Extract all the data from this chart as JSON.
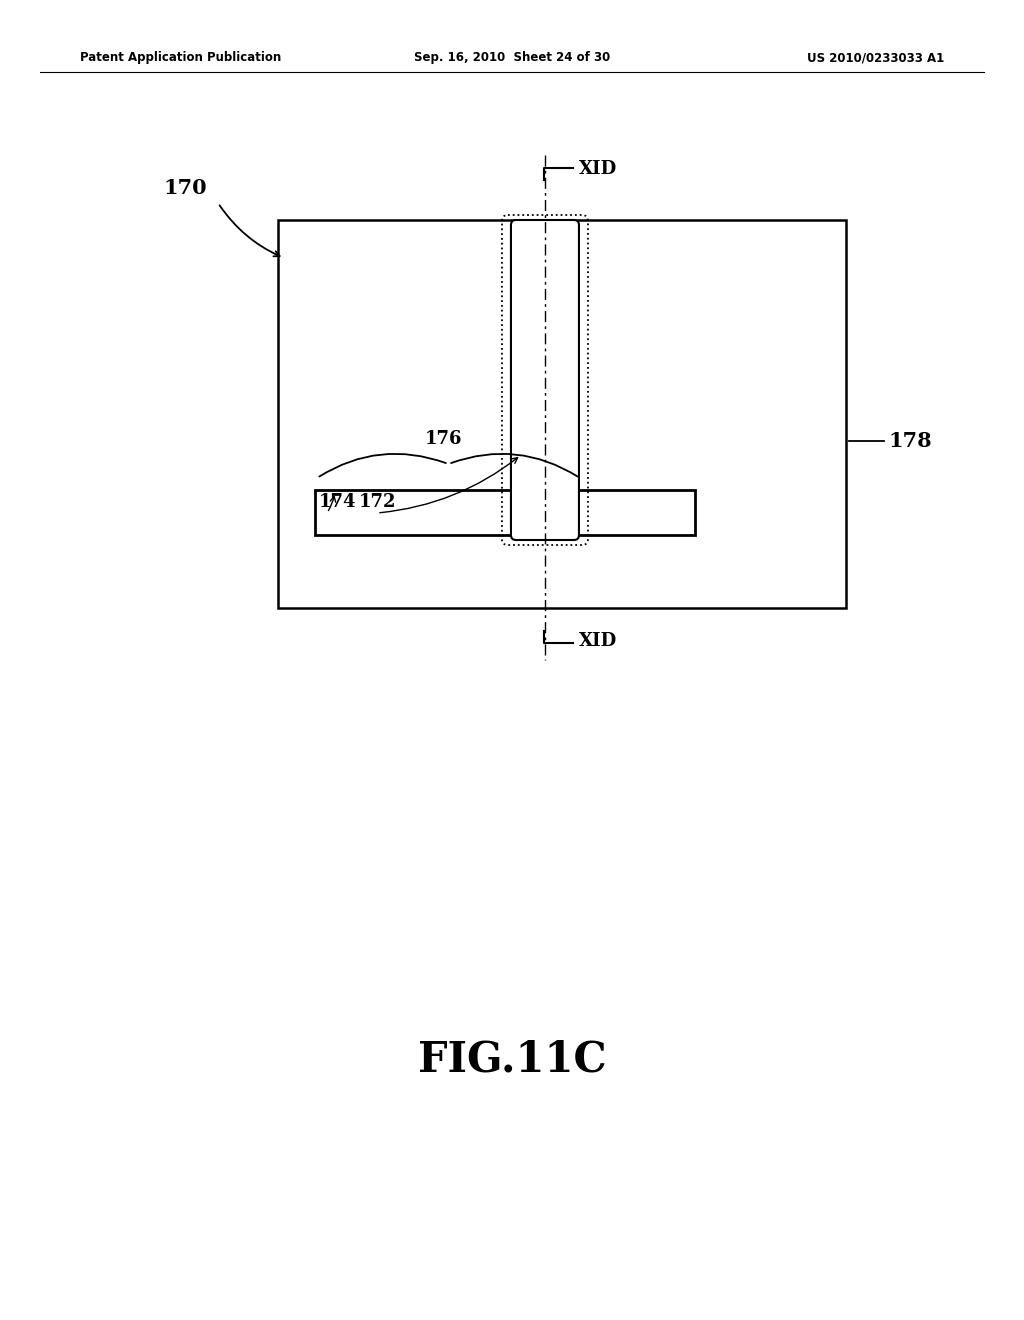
{
  "bg_color": "#ffffff",
  "text_color": "#000000",
  "header_left": "Patent Application Publication",
  "header_mid": "Sep. 16, 2010  Sheet 24 of 30",
  "header_right": "US 2010/0233033 A1",
  "fig_label": "FIG.11C",
  "label_170": "170",
  "label_178": "178",
  "label_176": "176",
  "label_174": "174",
  "label_172": "172",
  "label_XID_top": "XID",
  "label_XID_bot": "XID"
}
